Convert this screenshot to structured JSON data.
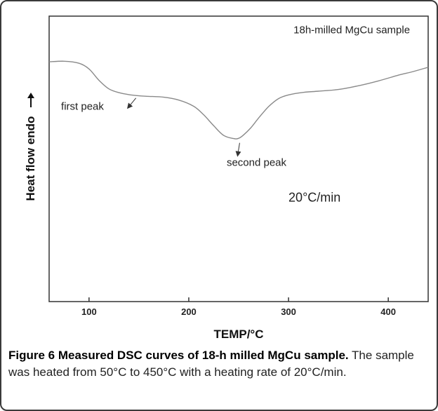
{
  "figure": {
    "caption_title": "Figure 6 Measured DSC curves of 18-h milled MgCu sample.",
    "caption_text": "The sample was heated from 50°C to 450°C with a heating rate of 20°C/min."
  },
  "chart_data": {
    "type": "line",
    "title": "",
    "xlabel": "TEMP/°C",
    "ylabel": "Heat flow endo",
    "xlim": [
      60,
      440
    ],
    "ylim": [
      0,
      100
    ],
    "y_ticks_shown": false,
    "x_ticks": [
      100,
      200,
      300,
      400
    ],
    "x_tick_labels": [
      "100",
      "200",
      "300",
      "400"
    ],
    "grid": false,
    "legend": "none",
    "line_color": "#8a8a8a",
    "series": [
      {
        "x": [
          60,
          75,
          90,
          100,
          110,
          120,
          130,
          140,
          150,
          160,
          175,
          190,
          205,
          215,
          225,
          235,
          245,
          250,
          255,
          262,
          270,
          280,
          290,
          300,
          315,
          330,
          350,
          370,
          390,
          410,
          425,
          440
        ],
        "y": [
          84,
          84.2,
          83.5,
          81.5,
          77.5,
          74.5,
          73.2,
          72.5,
          72.1,
          71.9,
          71.6,
          70.6,
          68.4,
          65.4,
          61.6,
          58.2,
          57.1,
          57.2,
          58.4,
          60.8,
          64.3,
          68.3,
          71.1,
          72.4,
          73.3,
          73.7,
          74.3,
          75.6,
          77.3,
          79.3,
          80.6,
          82.1
        ]
      }
    ],
    "annotations": [
      {
        "text": "18h-milled MgCu sample",
        "x": 305,
        "y": 94
      },
      {
        "text": "first peak",
        "x": 72,
        "y": 67.2
      },
      {
        "text": "second peak",
        "x": 238,
        "y": 47.5
      },
      {
        "text": "20°C/min",
        "x": 300,
        "y": 35
      }
    ],
    "arrows": [
      {
        "from": [
          147,
          71.3
        ],
        "to": [
          139,
          67.9
        ]
      },
      {
        "from": [
          251,
          55.6
        ],
        "to": [
          249,
          51.2
        ]
      }
    ]
  }
}
